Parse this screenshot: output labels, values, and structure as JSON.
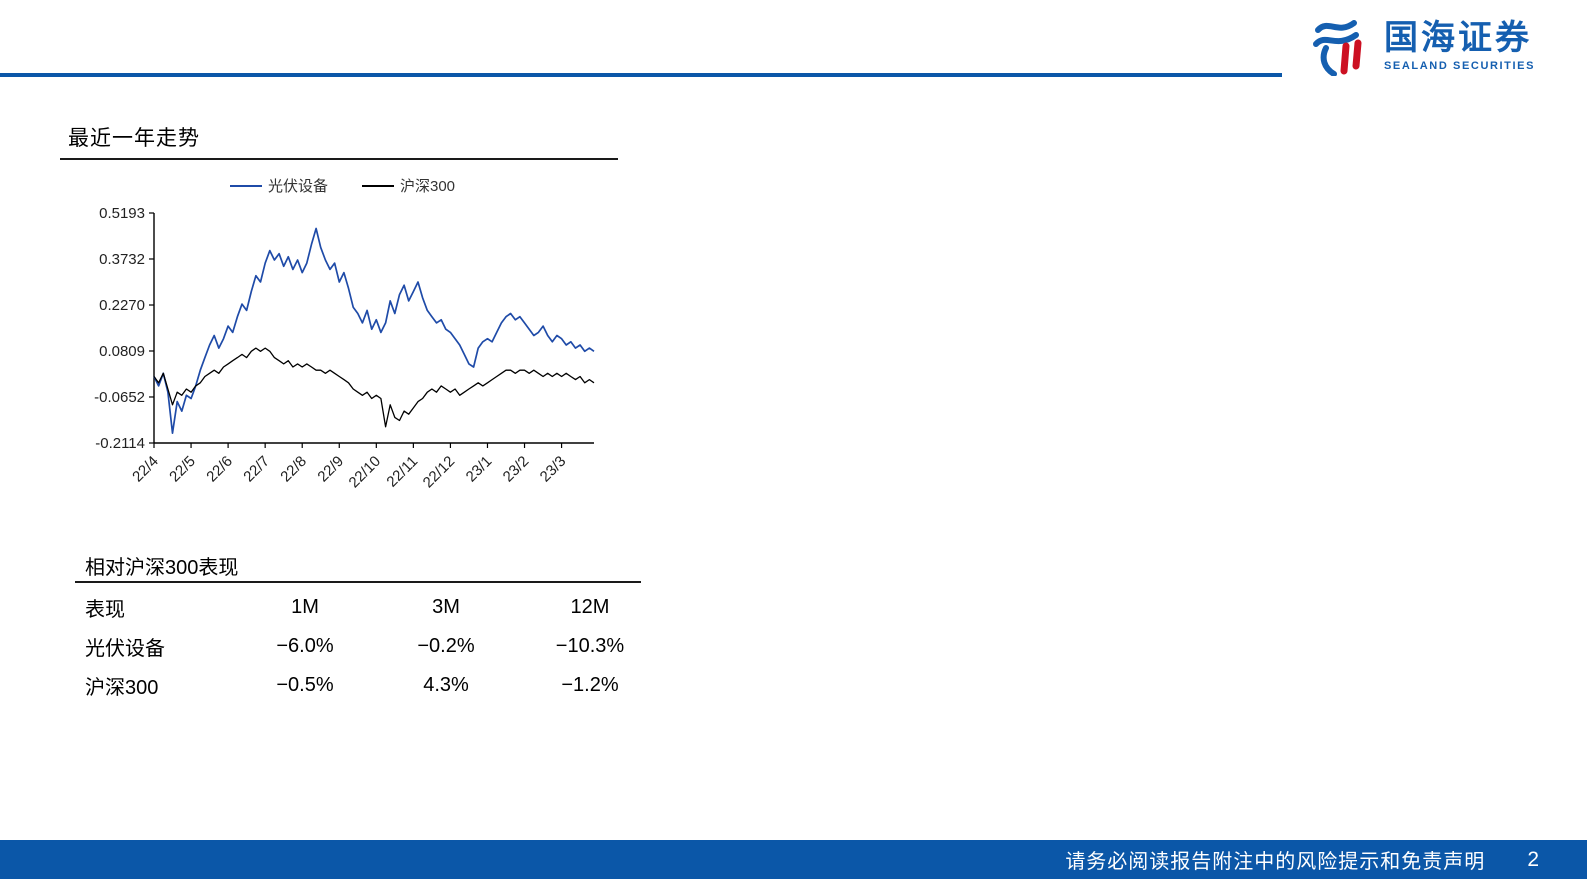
{
  "logo": {
    "name_cn": "国海证券",
    "name_en": "SEALAND SECURITIES"
  },
  "footer": {
    "disclaimer": "请务必阅读报告附注中的风险提示和免责声明",
    "page_number": "2"
  },
  "colors": {
    "accent_blue": "#0B57A8",
    "logo_blue": "#155FB0",
    "logo_red": "#CC1022",
    "series_blue": "#1F4BA8",
    "series_black": "#000000"
  },
  "chart_data": {
    "type": "line",
    "title": "最近一年走势",
    "legend_position": "top",
    "grid": false,
    "x_ticks": [
      "22/4",
      "22/5",
      "22/6",
      "22/7",
      "22/8",
      "22/9",
      "22/10",
      "22/11",
      "22/12",
      "23/1",
      "23/2",
      "23/3"
    ],
    "y_ticks": [
      0.5193,
      0.3732,
      0.227,
      0.0809,
      -0.0652,
      -0.2114
    ],
    "ylim": [
      -0.2114,
      0.5193
    ],
    "series": [
      {
        "name": "光伏设备",
        "color": "#1F4BA8",
        "values": [
          0.0,
          -0.03,
          0.01,
          -0.05,
          -0.18,
          -0.08,
          -0.11,
          -0.06,
          -0.07,
          -0.03,
          0.02,
          0.06,
          0.1,
          0.13,
          0.09,
          0.12,
          0.16,
          0.14,
          0.19,
          0.23,
          0.21,
          0.27,
          0.32,
          0.3,
          0.36,
          0.4,
          0.37,
          0.39,
          0.35,
          0.38,
          0.34,
          0.37,
          0.33,
          0.36,
          0.42,
          0.47,
          0.41,
          0.37,
          0.34,
          0.36,
          0.3,
          0.33,
          0.28,
          0.22,
          0.2,
          0.17,
          0.21,
          0.15,
          0.18,
          0.14,
          0.17,
          0.24,
          0.2,
          0.26,
          0.29,
          0.24,
          0.27,
          0.3,
          0.25,
          0.21,
          0.19,
          0.17,
          0.18,
          0.15,
          0.14,
          0.12,
          0.1,
          0.07,
          0.04,
          0.03,
          0.09,
          0.11,
          0.12,
          0.11,
          0.14,
          0.17,
          0.19,
          0.2,
          0.18,
          0.19,
          0.17,
          0.15,
          0.13,
          0.14,
          0.16,
          0.13,
          0.11,
          0.13,
          0.12,
          0.1,
          0.11,
          0.09,
          0.1,
          0.08,
          0.09,
          0.08
        ]
      },
      {
        "name": "沪深300",
        "color": "#000000",
        "values": [
          0.0,
          -0.02,
          0.01,
          -0.04,
          -0.09,
          -0.05,
          -0.06,
          -0.04,
          -0.05,
          -0.03,
          -0.02,
          0.0,
          0.01,
          0.02,
          0.01,
          0.03,
          0.04,
          0.05,
          0.06,
          0.07,
          0.06,
          0.08,
          0.09,
          0.08,
          0.09,
          0.08,
          0.06,
          0.05,
          0.04,
          0.05,
          0.03,
          0.04,
          0.03,
          0.04,
          0.03,
          0.02,
          0.02,
          0.01,
          0.02,
          0.01,
          0.0,
          -0.01,
          -0.02,
          -0.04,
          -0.05,
          -0.06,
          -0.05,
          -0.07,
          -0.06,
          -0.07,
          -0.16,
          -0.09,
          -0.13,
          -0.14,
          -0.11,
          -0.12,
          -0.1,
          -0.08,
          -0.07,
          -0.05,
          -0.04,
          -0.05,
          -0.03,
          -0.04,
          -0.05,
          -0.04,
          -0.06,
          -0.05,
          -0.04,
          -0.03,
          -0.02,
          -0.03,
          -0.02,
          -0.01,
          0.0,
          0.01,
          0.02,
          0.02,
          0.01,
          0.02,
          0.02,
          0.01,
          0.02,
          0.01,
          0.0,
          0.01,
          0.0,
          0.01,
          0.0,
          0.01,
          0.0,
          -0.01,
          0.0,
          -0.02,
          -0.01,
          -0.02
        ]
      }
    ]
  },
  "table": {
    "title": "相对沪深300表现",
    "headers": [
      "表现",
      "1M",
      "3M",
      "12M"
    ],
    "rows": [
      {
        "label": "光伏设备",
        "values": [
          "−6.0%",
          "−0.2%",
          "−10.3%"
        ]
      },
      {
        "label": "沪深300",
        "values": [
          "−0.5%",
          "4.3%",
          "−1.2%"
        ]
      }
    ]
  }
}
